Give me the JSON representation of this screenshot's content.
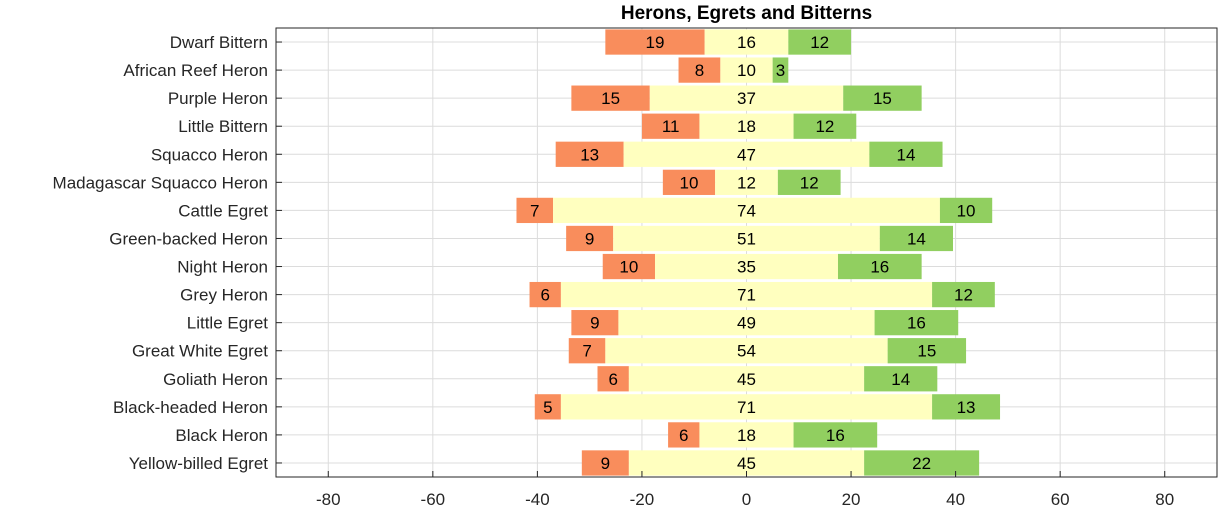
{
  "chart_data": {
    "type": "bar",
    "orientation": "horizontal",
    "stacked": "diverging",
    "title": "Herons, Egrets and Bitterns",
    "xlim": [
      -90,
      90
    ],
    "xticks": [
      -80,
      -60,
      -40,
      -20,
      0,
      20,
      40,
      60,
      80
    ],
    "grid": true,
    "categories": [
      "Dwarf Bittern",
      "African Reef Heron",
      "Purple Heron",
      "Little Bittern",
      "Squacco Heron",
      "Madagascar Squacco Heron",
      "Cattle Egret",
      "Green-backed Heron",
      "Night Heron",
      "Grey Heron",
      "Little Egret",
      "Great White Egret",
      "Goliath Heron",
      "Black-headed Heron",
      "Black Heron",
      "Yellow-billed Egret"
    ],
    "series": [
      {
        "color": "#f98d5c",
        "values": [
          19,
          8,
          15,
          11,
          13,
          10,
          7,
          9,
          10,
          6,
          9,
          7,
          6,
          5,
          6,
          9
        ]
      },
      {
        "color": "#ffffbf",
        "values": [
          16,
          10,
          37,
          18,
          47,
          12,
          74,
          51,
          35,
          71,
          49,
          54,
          45,
          71,
          18,
          45
        ]
      },
      {
        "color": "#91cf60",
        "values": [
          12,
          3,
          15,
          12,
          14,
          12,
          10,
          14,
          16,
          12,
          16,
          15,
          14,
          13,
          16,
          22
        ]
      }
    ]
  }
}
